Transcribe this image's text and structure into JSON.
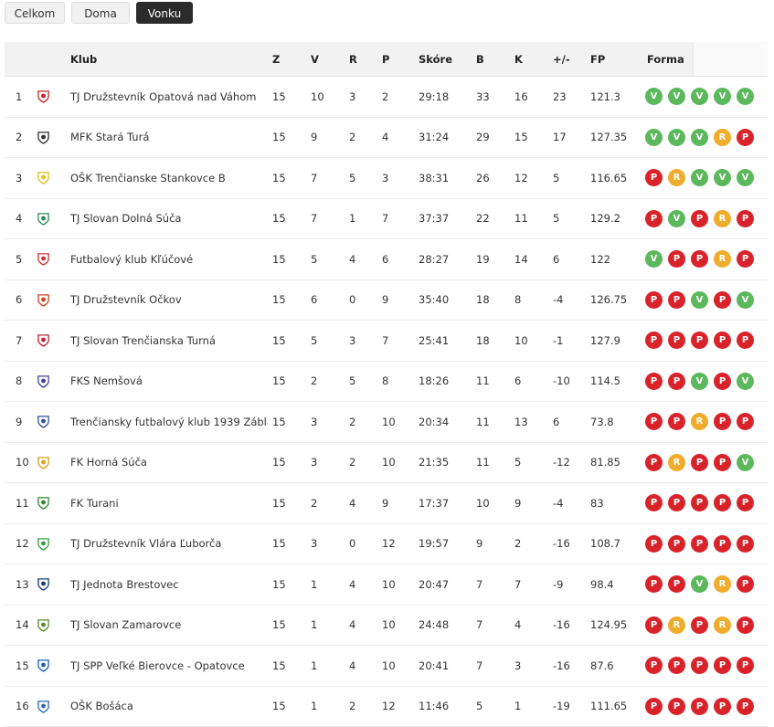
{
  "tabs": [
    {
      "label": "Celkom",
      "active": false
    },
    {
      "label": "Doma",
      "active": false
    },
    {
      "label": "Vonku",
      "active": true
    }
  ],
  "table": {
    "headers": {
      "club": "Klub",
      "z": "Z",
      "v": "V",
      "r": "R",
      "p": "P",
      "score": "Skóre",
      "b": "B",
      "k": "K",
      "diff": "+/-",
      "fp": "FP",
      "form": "Forma"
    },
    "rows": [
      {
        "pos": "1",
        "club": "TJ Družstevník Opatová nad Váhom",
        "z": "15",
        "v": "10",
        "r": "3",
        "p": "2",
        "score": "29:18",
        "b": "33",
        "k": "16",
        "diff": "23",
        "fp": "121.3",
        "form": [
          "V",
          "V",
          "V",
          "V",
          "V"
        ],
        "logo_color": "#c1272d"
      },
      {
        "pos": "2",
        "club": "MFK Stará Turá",
        "z": "15",
        "v": "9",
        "r": "2",
        "p": "4",
        "score": "31:24",
        "b": "29",
        "k": "15",
        "diff": "17",
        "fp": "127.35",
        "form": [
          "V",
          "V",
          "V",
          "R",
          "P"
        ],
        "logo_color": "#333333"
      },
      {
        "pos": "3",
        "club": "OŠK Trenčianske Stankovce B",
        "z": "15",
        "v": "7",
        "r": "5",
        "p": "3",
        "score": "38:31",
        "b": "26",
        "k": "12",
        "diff": "5",
        "fp": "116.65",
        "form": [
          "P",
          "R",
          "V",
          "V",
          "V"
        ],
        "logo_color": "#e0c020"
      },
      {
        "pos": "4",
        "club": "TJ Slovan Dolná Súča",
        "z": "15",
        "v": "7",
        "r": "1",
        "p": "7",
        "score": "37:37",
        "b": "22",
        "k": "11",
        "diff": "5",
        "fp": "129.2",
        "form": [
          "P",
          "V",
          "P",
          "R",
          "P"
        ],
        "logo_color": "#2e8b57"
      },
      {
        "pos": "5",
        "club": "Futbalový klub Kľúčové",
        "z": "15",
        "v": "5",
        "r": "4",
        "p": "6",
        "score": "28:27",
        "b": "19",
        "k": "14",
        "diff": "6",
        "fp": "122",
        "form": [
          "V",
          "P",
          "P",
          "R",
          "P"
        ],
        "logo_color": "#d03030"
      },
      {
        "pos": "6",
        "club": "TJ Družstevník Očkov",
        "z": "15",
        "v": "6",
        "r": "0",
        "p": "9",
        "score": "35:40",
        "b": "18",
        "k": "8",
        "diff": "-4",
        "fp": "126.75",
        "form": [
          "P",
          "P",
          "V",
          "P",
          "V"
        ],
        "logo_color": "#d04020"
      },
      {
        "pos": "7",
        "club": "TJ Slovan Trenčianska Turná",
        "z": "15",
        "v": "5",
        "r": "3",
        "p": "7",
        "score": "25:41",
        "b": "18",
        "k": "10",
        "diff": "-1",
        "fp": "127.9",
        "form": [
          "P",
          "P",
          "P",
          "P",
          "P"
        ],
        "logo_color": "#c02030"
      },
      {
        "pos": "8",
        "club": "FKS Nemšová",
        "z": "15",
        "v": "2",
        "r": "5",
        "p": "8",
        "score": "18:26",
        "b": "11",
        "k": "6",
        "diff": "-10",
        "fp": "114.5",
        "form": [
          "P",
          "P",
          "V",
          "P",
          "V"
        ],
        "logo_color": "#4040a0"
      },
      {
        "pos": "9",
        "club": "Trenčiansky futbalový klub 1939 Záblatie",
        "z": "15",
        "v": "3",
        "r": "2",
        "p": "10",
        "score": "20:34",
        "b": "11",
        "k": "13",
        "diff": "6",
        "fp": "73.8",
        "form": [
          "P",
          "P",
          "R",
          "P",
          "P"
        ],
        "logo_color": "#3050a0"
      },
      {
        "pos": "10",
        "club": "FK Horná Súča",
        "z": "15",
        "v": "3",
        "r": "2",
        "p": "10",
        "score": "21:35",
        "b": "11",
        "k": "5",
        "diff": "-12",
        "fp": "81.85",
        "form": [
          "P",
          "R",
          "P",
          "P",
          "V"
        ],
        "logo_color": "#e0a020"
      },
      {
        "pos": "11",
        "club": "FK Turani",
        "z": "15",
        "v": "2",
        "r": "4",
        "p": "9",
        "score": "17:37",
        "b": "10",
        "k": "9",
        "diff": "-4",
        "fp": "83",
        "form": [
          "P",
          "P",
          "P",
          "P",
          "P"
        ],
        "logo_color": "#2e8b2e"
      },
      {
        "pos": "12",
        "club": "TJ Družstevník Vlára Ľuborča",
        "z": "15",
        "v": "3",
        "r": "0",
        "p": "12",
        "score": "19:57",
        "b": "9",
        "k": "2",
        "diff": "-16",
        "fp": "108.7",
        "form": [
          "P",
          "P",
          "P",
          "P",
          "P"
        ],
        "logo_color": "#3aa040"
      },
      {
        "pos": "13",
        "club": "TJ Jednota Brestovec",
        "z": "15",
        "v": "1",
        "r": "4",
        "p": "10",
        "score": "20:47",
        "b": "7",
        "k": "7",
        "diff": "-9",
        "fp": "98.4",
        "form": [
          "P",
          "P",
          "V",
          "R",
          "P"
        ],
        "logo_color": "#1a3a7a"
      },
      {
        "pos": "14",
        "club": "TJ Slovan Zamarovce",
        "z": "15",
        "v": "1",
        "r": "4",
        "p": "10",
        "score": "24:48",
        "b": "7",
        "k": "4",
        "diff": "-16",
        "fp": "124.95",
        "form": [
          "P",
          "R",
          "P",
          "R",
          "P"
        ],
        "logo_color": "#5a8a2a"
      },
      {
        "pos": "15",
        "club": "TJ SPP Veľké Bierovce - Opatovce",
        "z": "15",
        "v": "1",
        "r": "4",
        "p": "10",
        "score": "20:41",
        "b": "7",
        "k": "3",
        "diff": "-16",
        "fp": "87.6",
        "form": [
          "P",
          "P",
          "P",
          "P",
          "P"
        ],
        "logo_color": "#2060b0"
      },
      {
        "pos": "16",
        "club": "OŠK Bošáca",
        "z": "15",
        "v": "1",
        "r": "2",
        "p": "12",
        "score": "11:46",
        "b": "5",
        "k": "1",
        "diff": "-19",
        "fp": "111.65",
        "form": [
          "P",
          "P",
          "P",
          "P",
          "P"
        ],
        "logo_color": "#2a6ab0"
      }
    ]
  }
}
